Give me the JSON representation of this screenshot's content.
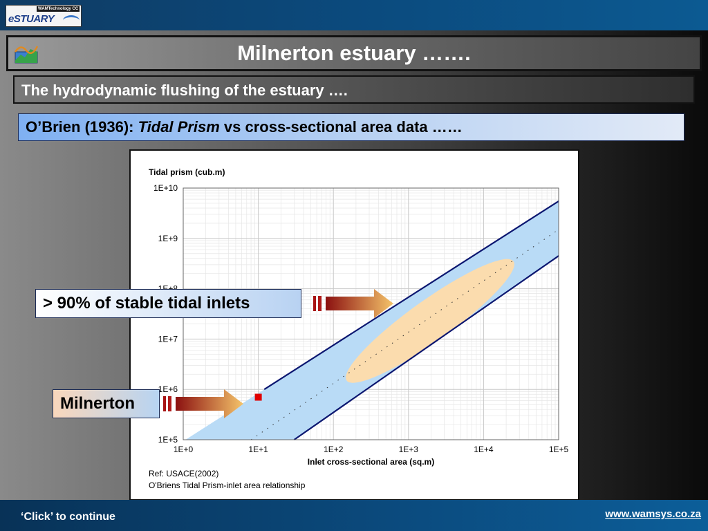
{
  "header": {
    "logo_tag": "WAMTechnology CC",
    "logo_text": "eSTUARY"
  },
  "title": "Milnerton estuary  …….",
  "subtitle": "The hydrodynamic flushing of the estuary   ….",
  "heading": {
    "prefix": "O’Brien (1936):  ",
    "emphasis": "Tidal Prism",
    "suffix": " vs cross-sectional area data ……"
  },
  "callouts": {
    "stable": "> 90% of stable tidal inlets",
    "milnerton": "Milnerton"
  },
  "footer": {
    "continue": "‘Click’ to continue",
    "website": "www.wamsys.co.za"
  },
  "colors": {
    "band_fill": "#b9dbf6",
    "boundary_line": "#0b1670",
    "cluster_fill": "#fbdcae",
    "marker": "#e00000",
    "arrow_start": "#8b1010",
    "arrow_end": "#f5c46a"
  },
  "chart_data": {
    "type": "scatter",
    "xlabel": "Inlet cross-sectional area (sq.m)",
    "ylabel": "Tidal prism (cub.m)",
    "x_scale": "log",
    "y_scale": "log",
    "xlim": [
      1,
      100000
    ],
    "ylim": [
      100000,
      10000000000
    ],
    "x_ticks": [
      "1E+0",
      "1E+1",
      "1E+2",
      "1E+3",
      "1E+4",
      "1E+5"
    ],
    "y_ticks": [
      "1E+5",
      "1E+6",
      "1E+7",
      "1E+8",
      "1E+9",
      "1E+10"
    ],
    "grid": true,
    "band": {
      "upper_line": [
        [
          12,
          1000000
        ],
        [
          100000,
          5500000000
        ]
      ],
      "lower_line": [
        [
          30,
          100000
        ],
        [
          100000,
          450000000
        ]
      ],
      "center_line": [
        [
          8,
          100000
        ],
        [
          100000,
          1500000000
        ]
      ]
    },
    "stable_inlets_region": {
      "from": [
        150,
        1500000
      ],
      "to": [
        25000,
        350000000
      ]
    },
    "points": [
      {
        "name": "Milnerton",
        "x": 10,
        "y": 700000
      }
    ],
    "ref_lines": [
      "Ref: USACE(2002)",
      "O'Briens Tidal Prism-inlet area relationship"
    ]
  }
}
